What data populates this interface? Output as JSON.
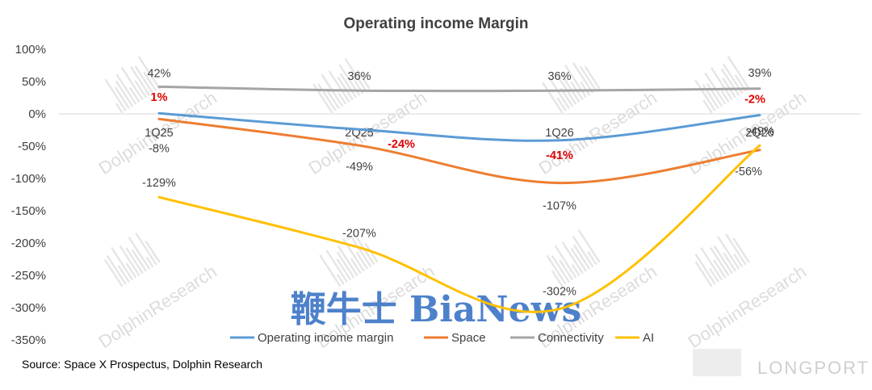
{
  "chart_data": {
    "type": "line",
    "title": "Operating income Margin",
    "categories": [
      "1Q25",
      "2Q25",
      "1Q26",
      "2Q26"
    ],
    "ylim": [
      -350,
      100
    ],
    "yticks": [
      100,
      50,
      0,
      -50,
      -100,
      -150,
      -200,
      -250,
      -300,
      -350
    ],
    "ytick_labels": [
      "100%",
      "50%",
      "0%",
      "-50%",
      "-100%",
      "-150%",
      "-200%",
      "-250%",
      "-300%",
      "-350%"
    ],
    "grid": false,
    "legend_position": "bottom",
    "series": [
      {
        "name": "Operating income margin",
        "color": "#5b9bd5",
        "values": [
          1,
          -24,
          -41,
          -2
        ],
        "labels": [
          "1%",
          "-24%",
          "-41%",
          "-2%"
        ],
        "label_color": "#e00000"
      },
      {
        "name": "Space",
        "color": "#ed7d31",
        "values": [
          -8,
          -49,
          -107,
          -56
        ],
        "labels": [
          "-8%",
          "-49%",
          "-107%",
          "-56%"
        ],
        "label_color": "#404040"
      },
      {
        "name": "Connectivity",
        "color": "#a5a5a5",
        "values": [
          42,
          36,
          36,
          39
        ],
        "labels": [
          "42%",
          "36%",
          "36%",
          "39%"
        ],
        "label_color": "#404040"
      },
      {
        "name": "AI",
        "color": "#ffc000",
        "values": [
          -129,
          -207,
          -302,
          -49
        ],
        "labels": [
          "-129%",
          "-207%",
          "-302%",
          "-49%"
        ],
        "label_color": "#404040"
      }
    ]
  },
  "source": "Source: Space X Prospectus, Dolphin Research",
  "watermarks": {
    "dolphin": "DolphinResearch",
    "brand": "鞭牛士 BiaNews",
    "longport": "LONGPORT"
  }
}
